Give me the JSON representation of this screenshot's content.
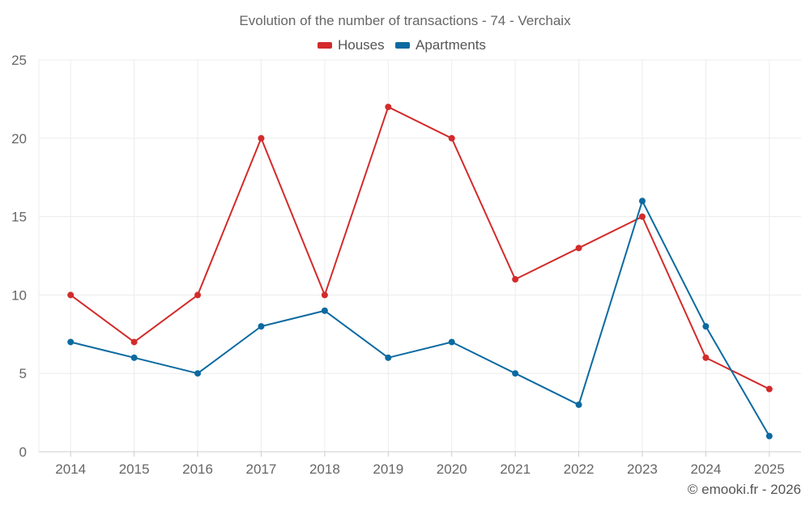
{
  "chart_data": {
    "type": "line",
    "title": "Evolution of the number of transactions - 74 - Verchaix",
    "xlabel": "",
    "ylabel": "",
    "categories": [
      "2014",
      "2015",
      "2016",
      "2017",
      "2018",
      "2019",
      "2020",
      "2021",
      "2022",
      "2023",
      "2024",
      "2025"
    ],
    "ylim": [
      0,
      25
    ],
    "yticks": [
      0,
      5,
      10,
      15,
      20,
      25
    ],
    "grid": true,
    "legend_position": "top-center",
    "series": [
      {
        "name": "Houses",
        "color": "#d32b2b",
        "values": [
          10,
          7,
          10,
          20,
          10,
          22,
          20,
          11,
          13,
          15,
          6,
          4
        ]
      },
      {
        "name": "Apartments",
        "color": "#0c6aa0",
        "values": [
          7,
          6,
          5,
          8,
          9,
          6,
          7,
          5,
          3,
          16,
          8,
          1
        ]
      }
    ]
  },
  "credit": "© emooki.fr - 2026"
}
